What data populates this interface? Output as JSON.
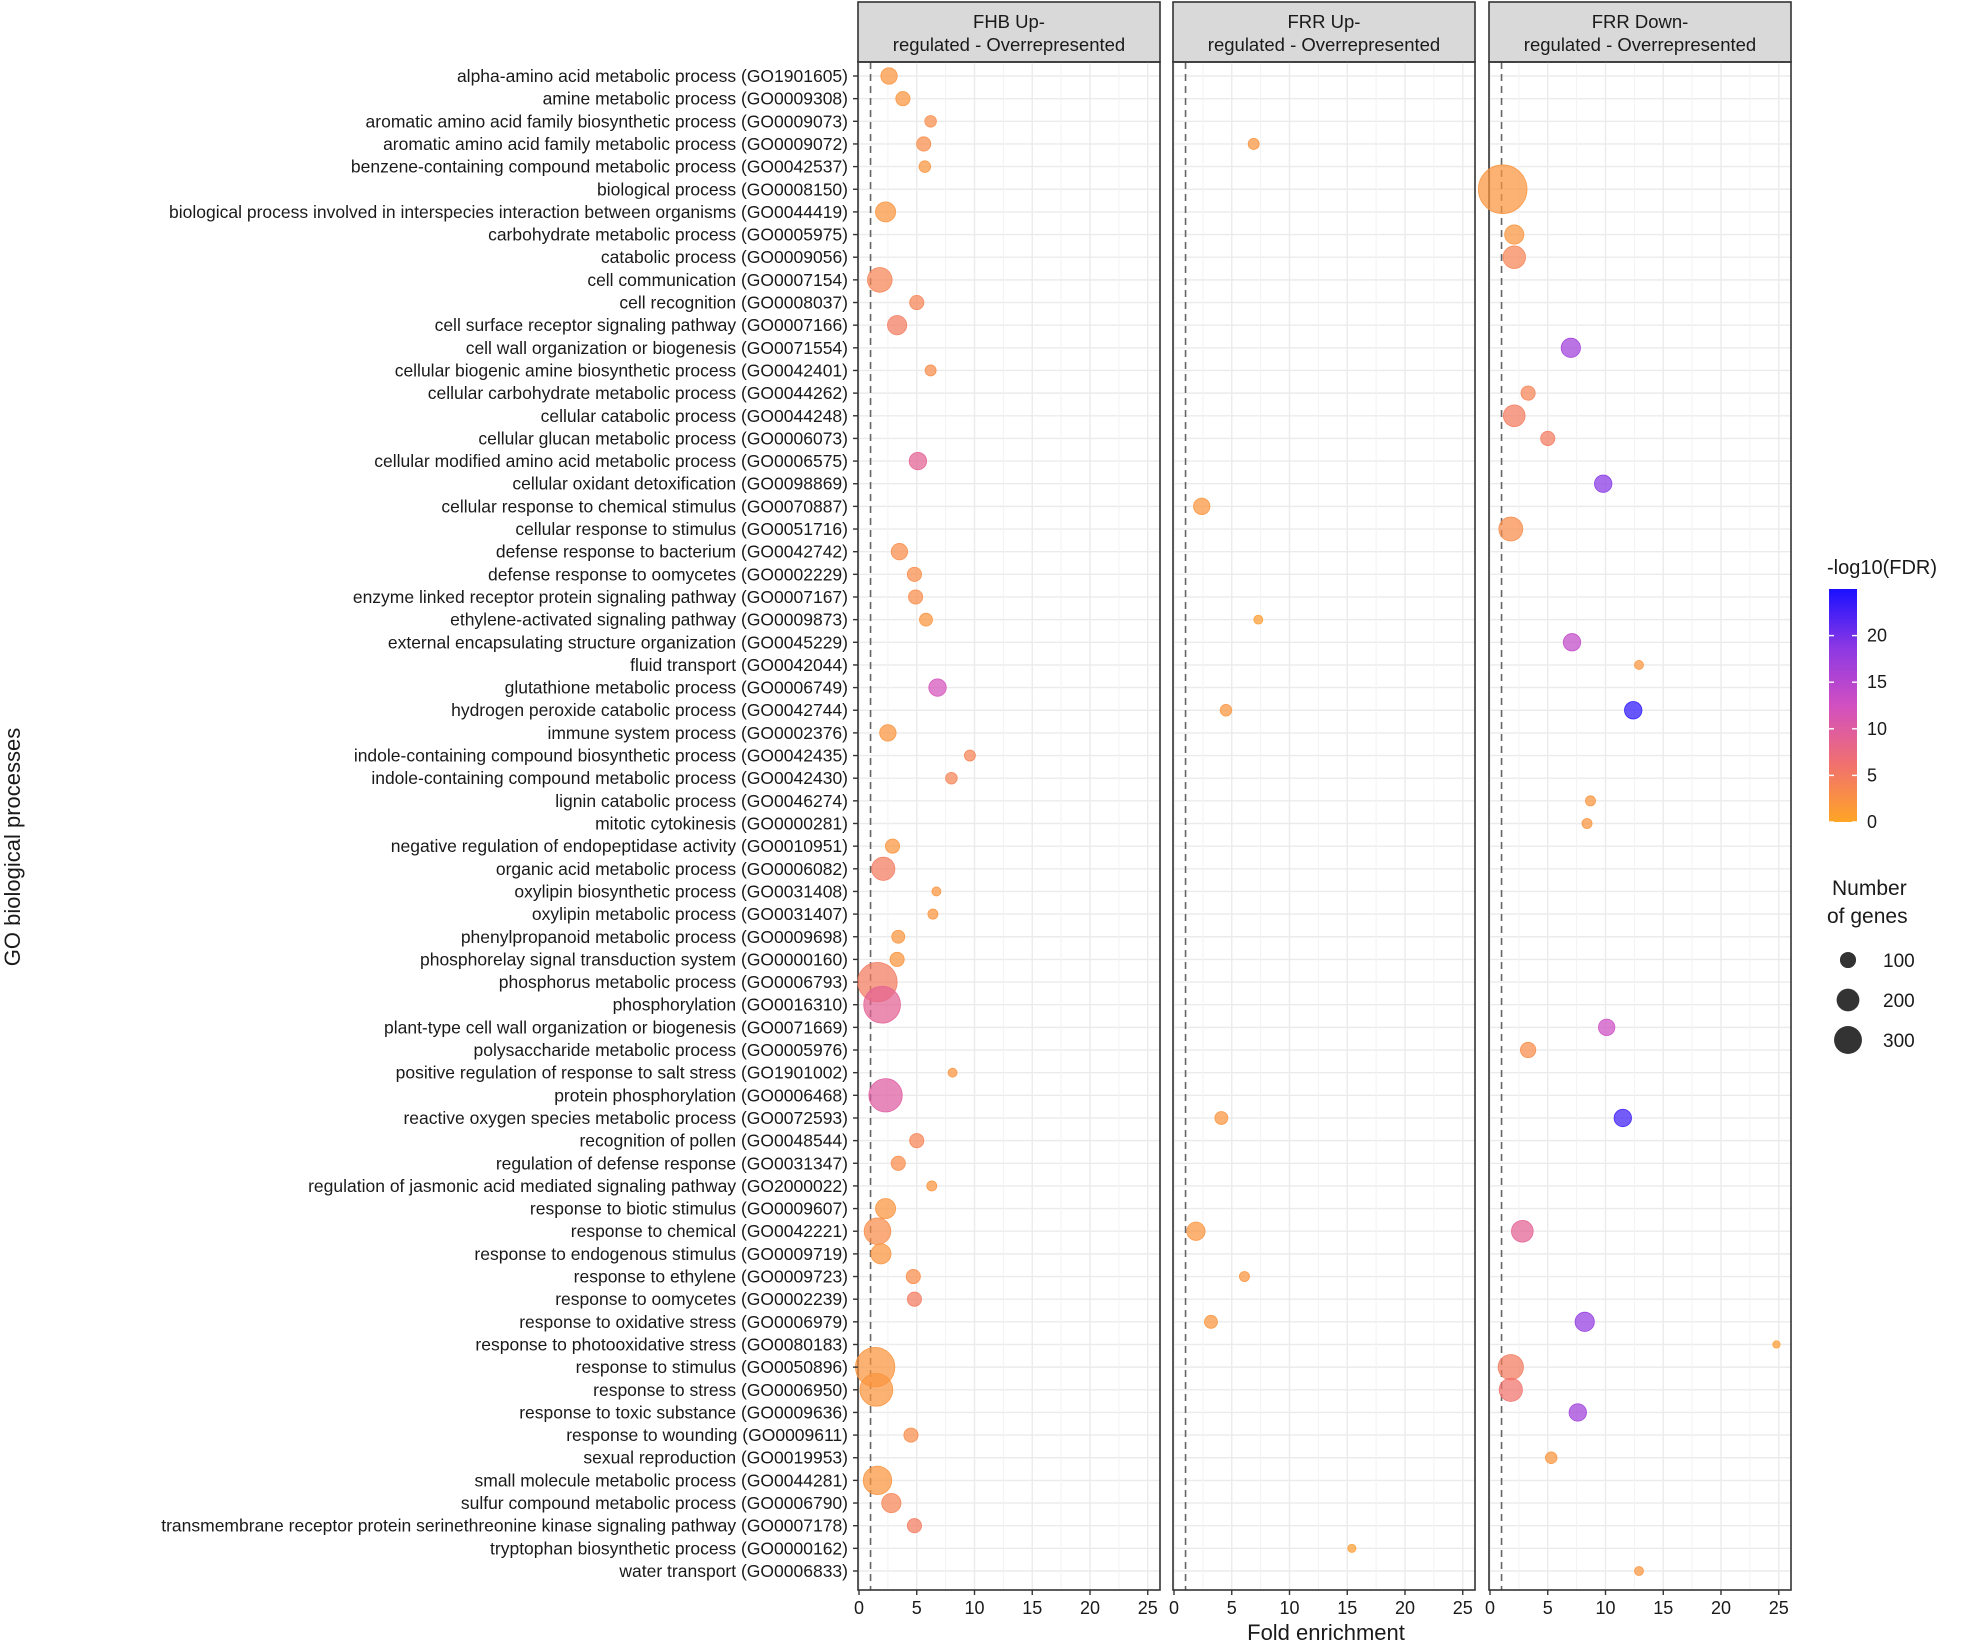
{
  "chart_data": {
    "type": "scatter",
    "subtype": "faceted-bubble",
    "ylabel": "GO biological processes",
    "xlabel": "Fold enrichment",
    "xlim": [
      0,
      26
    ],
    "xticks": [
      0,
      5,
      10,
      15,
      20,
      25
    ],
    "reference_line_x": 1,
    "grid": true,
    "panels": [
      {
        "title": [
          "FHB Up-",
          "regulated - Overrepresented"
        ]
      },
      {
        "title": [
          "FRR Up-",
          "regulated - Overrepresented"
        ]
      },
      {
        "title": [
          "FRR Down-",
          "regulated - Overrepresented"
        ]
      }
    ],
    "categories": [
      "alpha-amino acid metabolic process (GO1901605)",
      "amine metabolic process (GO0009308)",
      "aromatic amino acid family biosynthetic process (GO0009073)",
      "aromatic amino acid family metabolic process (GO0009072)",
      "benzene-containing compound metabolic process (GO0042537)",
      "biological process (GO0008150)",
      "biological process involved in interspecies interaction between organisms (GO0044419)",
      "carbohydrate metabolic process (GO0005975)",
      "catabolic process (GO0009056)",
      "cell communication (GO0007154)",
      "cell recognition (GO0008037)",
      "cell surface receptor signaling pathway (GO0007166)",
      "cell wall organization or biogenesis (GO0071554)",
      "cellular biogenic amine biosynthetic process (GO0042401)",
      "cellular carbohydrate metabolic process (GO0044262)",
      "cellular catabolic process (GO0044248)",
      "cellular glucan metabolic process (GO0006073)",
      "cellular modified amino acid metabolic process (GO0006575)",
      "cellular oxidant detoxification (GO0098869)",
      "cellular response to chemical stimulus (GO0070887)",
      "cellular response to stimulus (GO0051716)",
      "defense response to bacterium (GO0042742)",
      "defense response to oomycetes (GO0002229)",
      "enzyme linked receptor protein signaling pathway (GO0007167)",
      "ethylene-activated signaling pathway (GO0009873)",
      "external encapsulating structure organization (GO0045229)",
      "fluid transport (GO0042044)",
      "glutathione metabolic process (GO0006749)",
      "hydrogen peroxide catabolic process (GO0042744)",
      "immune system process (GO0002376)",
      "indole-containing compound biosynthetic process (GO0042435)",
      "indole-containing compound metabolic process (GO0042430)",
      "lignin catabolic process (GO0046274)",
      "mitotic cytokinesis (GO0000281)",
      "negative regulation of endopeptidase activity (GO0010951)",
      "organic acid metabolic process (GO0006082)",
      "oxylipin biosynthetic process (GO0031408)",
      "oxylipin metabolic process (GO0031407)",
      "phenylpropanoid metabolic process (GO0009698)",
      "phosphorelay signal transduction system (GO0000160)",
      "phosphorus metabolic process (GO0006793)",
      "phosphorylation (GO0016310)",
      "plant-type cell wall organization or biogenesis (GO0071669)",
      "polysaccharide metabolic process (GO0005976)",
      "positive regulation of response to salt stress (GO1901002)",
      "protein phosphorylation (GO0006468)",
      "reactive oxygen species metabolic process (GO0072593)",
      "recognition of pollen (GO0048544)",
      "regulation of defense response (GO0031347)",
      "regulation of jasmonic acid mediated signaling pathway (GO2000022)",
      "response to biotic stimulus (GO0009607)",
      "response to chemical (GO0042221)",
      "response to endogenous stimulus (GO0009719)",
      "response to ethylene (GO0009723)",
      "response to oomycetes (GO0002239)",
      "response to oxidative stress (GO0006979)",
      "response to photooxidative stress (GO0080183)",
      "response to stimulus (GO0050896)",
      "response to stress (GO0006950)",
      "response to toxic substance (GO0009636)",
      "response to wounding (GO0009611)",
      "sexual reproduction (GO0019953)",
      "small molecule metabolic process (GO0044281)",
      "sulfur compound metabolic process (GO0006790)",
      "transmembrane receptor protein serinethreonine kinase signaling pathway (GO0007178)",
      "tryptophan biosynthetic process (GO0000162)",
      "water transport (GO0006833)"
    ],
    "series": [
      {
        "name": "FHB Up-regulated - Overrepresented",
        "points": [
          {
            "row": 0,
            "fold": 2.6,
            "genes": 40,
            "log10fdr": 2
          },
          {
            "row": 1,
            "fold": 3.8,
            "genes": 30,
            "log10fdr": 2
          },
          {
            "row": 2,
            "fold": 6.2,
            "genes": 20,
            "log10fdr": 3
          },
          {
            "row": 3,
            "fold": 5.6,
            "genes": 30,
            "log10fdr": 3
          },
          {
            "row": 4,
            "fold": 5.7,
            "genes": 20,
            "log10fdr": 2
          },
          {
            "row": 6,
            "fold": 2.3,
            "genes": 60,
            "log10fdr": 2
          },
          {
            "row": 9,
            "fold": 1.8,
            "genes": 90,
            "log10fdr": 4
          },
          {
            "row": 10,
            "fold": 5.0,
            "genes": 30,
            "log10fdr": 4
          },
          {
            "row": 11,
            "fold": 3.3,
            "genes": 55,
            "log10fdr": 5
          },
          {
            "row": 13,
            "fold": 6.2,
            "genes": 18,
            "log10fdr": 3
          },
          {
            "row": 17,
            "fold": 5.1,
            "genes": 45,
            "log10fdr": 9
          },
          {
            "row": 21,
            "fold": 3.5,
            "genes": 40,
            "log10fdr": 3
          },
          {
            "row": 22,
            "fold": 4.8,
            "genes": 30,
            "log10fdr": 3
          },
          {
            "row": 23,
            "fold": 4.9,
            "genes": 30,
            "log10fdr": 3
          },
          {
            "row": 24,
            "fold": 5.8,
            "genes": 25,
            "log10fdr": 2
          },
          {
            "row": 27,
            "fold": 6.8,
            "genes": 45,
            "log10fdr": 12
          },
          {
            "row": 29,
            "fold": 2.5,
            "genes": 40,
            "log10fdr": 2
          },
          {
            "row": 30,
            "fold": 9.6,
            "genes": 18,
            "log10fdr": 4
          },
          {
            "row": 31,
            "fold": 8.0,
            "genes": 20,
            "log10fdr": 4
          },
          {
            "row": 34,
            "fold": 2.9,
            "genes": 30,
            "log10fdr": 2
          },
          {
            "row": 35,
            "fold": 2.1,
            "genes": 80,
            "log10fdr": 5
          },
          {
            "row": 36,
            "fold": 6.7,
            "genes": 12,
            "log10fdr": 2
          },
          {
            "row": 37,
            "fold": 6.4,
            "genes": 15,
            "log10fdr": 2
          },
          {
            "row": 38,
            "fold": 3.4,
            "genes": 25,
            "log10fdr": 2
          },
          {
            "row": 39,
            "fold": 3.3,
            "genes": 30,
            "log10fdr": 2
          },
          {
            "row": 40,
            "fold": 1.6,
            "genes": 230,
            "log10fdr": 5
          },
          {
            "row": 41,
            "fold": 2.0,
            "genes": 200,
            "log10fdr": 9
          },
          {
            "row": 44,
            "fold": 8.1,
            "genes": 12,
            "log10fdr": 2
          },
          {
            "row": 45,
            "fold": 2.3,
            "genes": 165,
            "log10fdr": 10
          },
          {
            "row": 47,
            "fold": 5.0,
            "genes": 30,
            "log10fdr": 4
          },
          {
            "row": 48,
            "fold": 3.4,
            "genes": 30,
            "log10fdr": 3
          },
          {
            "row": 49,
            "fold": 6.3,
            "genes": 15,
            "log10fdr": 2
          },
          {
            "row": 50,
            "fold": 2.3,
            "genes": 60,
            "log10fdr": 2
          },
          {
            "row": 51,
            "fold": 1.6,
            "genes": 105,
            "log10fdr": 3
          },
          {
            "row": 52,
            "fold": 1.9,
            "genes": 60,
            "log10fdr": 2
          },
          {
            "row": 53,
            "fold": 4.7,
            "genes": 30,
            "log10fdr": 3
          },
          {
            "row": 54,
            "fold": 4.8,
            "genes": 30,
            "log10fdr": 5
          },
          {
            "row": 57,
            "fold": 1.4,
            "genes": 230,
            "log10fdr": 2
          },
          {
            "row": 58,
            "fold": 1.5,
            "genes": 160,
            "log10fdr": 2
          },
          {
            "row": 60,
            "fold": 4.5,
            "genes": 30,
            "log10fdr": 3
          },
          {
            "row": 62,
            "fold": 1.6,
            "genes": 120,
            "log10fdr": 2
          },
          {
            "row": 63,
            "fold": 2.8,
            "genes": 55,
            "log10fdr": 4
          },
          {
            "row": 64,
            "fold": 4.8,
            "genes": 30,
            "log10fdr": 5
          }
        ]
      },
      {
        "name": "FRR Up-regulated - Overrepresented",
        "points": [
          {
            "row": 3,
            "fold": 6.9,
            "genes": 18,
            "log10fdr": 2
          },
          {
            "row": 19,
            "fold": 2.4,
            "genes": 40,
            "log10fdr": 2
          },
          {
            "row": 24,
            "fold": 7.3,
            "genes": 12,
            "log10fdr": 1
          },
          {
            "row": 28,
            "fold": 4.5,
            "genes": 20,
            "log10fdr": 2
          },
          {
            "row": 46,
            "fold": 4.1,
            "genes": 25,
            "log10fdr": 2
          },
          {
            "row": 51,
            "fold": 1.9,
            "genes": 50,
            "log10fdr": 2
          },
          {
            "row": 53,
            "fold": 6.1,
            "genes": 15,
            "log10fdr": 2
          },
          {
            "row": 55,
            "fold": 3.2,
            "genes": 25,
            "log10fdr": 2
          },
          {
            "row": 65,
            "fold": 15.4,
            "genes": 10,
            "log10fdr": 1
          }
        ]
      },
      {
        "name": "FRR Down-regulated - Overrepresented",
        "points": [
          {
            "row": 5,
            "fold": 1.1,
            "genes": 350,
            "log10fdr": 2
          },
          {
            "row": 7,
            "fold": 2.1,
            "genes": 55,
            "log10fdr": 2
          },
          {
            "row": 8,
            "fold": 2.1,
            "genes": 75,
            "log10fdr": 4
          },
          {
            "row": 12,
            "fold": 7.0,
            "genes": 55,
            "log10fdr": 17
          },
          {
            "row": 14,
            "fold": 3.3,
            "genes": 30,
            "log10fdr": 4
          },
          {
            "row": 15,
            "fold": 2.1,
            "genes": 70,
            "log10fdr": 5
          },
          {
            "row": 16,
            "fold": 5.0,
            "genes": 30,
            "log10fdr": 5
          },
          {
            "row": 18,
            "fold": 9.8,
            "genes": 45,
            "log10fdr": 19
          },
          {
            "row": 20,
            "fold": 1.8,
            "genes": 85,
            "log10fdr": 3
          },
          {
            "row": 25,
            "fold": 7.1,
            "genes": 45,
            "log10fdr": 14
          },
          {
            "row": 26,
            "fold": 12.9,
            "genes": 12,
            "log10fdr": 2
          },
          {
            "row": 28,
            "fold": 12.4,
            "genes": 45,
            "log10fdr": 24
          },
          {
            "row": 32,
            "fold": 8.7,
            "genes": 15,
            "log10fdr": 2
          },
          {
            "row": 33,
            "fold": 8.4,
            "genes": 15,
            "log10fdr": 2
          },
          {
            "row": 42,
            "fold": 10.1,
            "genes": 40,
            "log10fdr": 13
          },
          {
            "row": 43,
            "fold": 3.3,
            "genes": 35,
            "log10fdr": 3
          },
          {
            "row": 46,
            "fold": 11.5,
            "genes": 45,
            "log10fdr": 23
          },
          {
            "row": 51,
            "fold": 2.8,
            "genes": 70,
            "log10fdr": 9
          },
          {
            "row": 55,
            "fold": 8.2,
            "genes": 55,
            "log10fdr": 18
          },
          {
            "row": 56,
            "fold": 24.8,
            "genes": 8,
            "log10fdr": 1
          },
          {
            "row": 57,
            "fold": 1.8,
            "genes": 95,
            "log10fdr": 5
          },
          {
            "row": 58,
            "fold": 1.8,
            "genes": 80,
            "log10fdr": 6
          },
          {
            "row": 59,
            "fold": 7.6,
            "genes": 45,
            "log10fdr": 17
          },
          {
            "row": 61,
            "fold": 5.3,
            "genes": 20,
            "log10fdr": 2
          },
          {
            "row": 66,
            "fold": 12.9,
            "genes": 12,
            "log10fdr": 2
          }
        ]
      }
    ],
    "legend_color": {
      "title": "-log10(FDR)",
      "ticks": [
        0,
        5,
        10,
        15,
        20
      ],
      "range": [
        0,
        25
      ],
      "colors": [
        "#ffa526",
        "#f0706f",
        "#d24fc1",
        "#8b38e4",
        "#1a10ff"
      ]
    },
    "legend_size": {
      "title": [
        "Number",
        "of genes"
      ],
      "values": [
        100,
        200,
        300
      ]
    }
  }
}
